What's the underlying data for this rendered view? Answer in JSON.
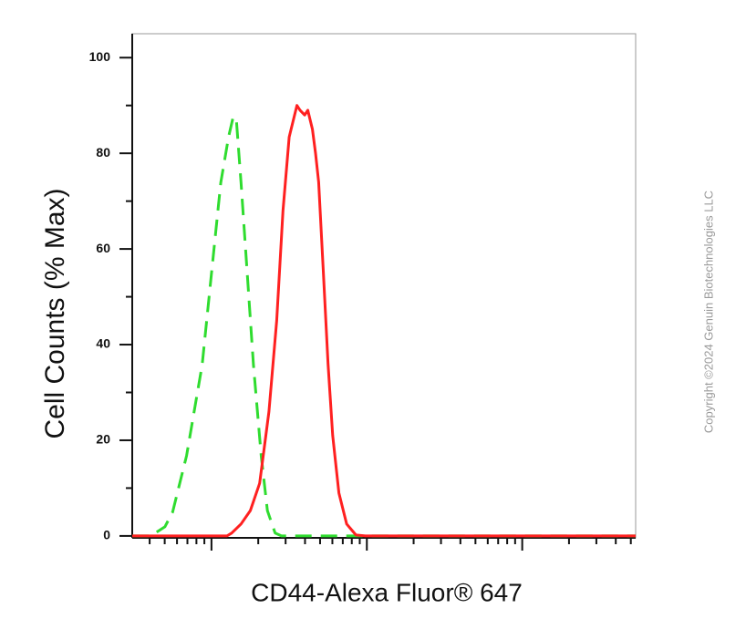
{
  "chart_data": {
    "type": "line",
    "ylabel": "Cell Counts (% Max)",
    "xlabel": "CD44-Alexa Fluor® 647",
    "copyright": "Copyright ©2024 Genuin Biotechnologies LLC",
    "xscale": "log-decades",
    "xlim": [
      -0.51,
      2.73
    ],
    "xticks": [
      0,
      1,
      2
    ],
    "ylim": [
      -0.4,
      105
    ],
    "yticks": [
      0,
      20,
      40,
      60,
      80,
      100
    ],
    "series": [
      {
        "color": "#2fdc2f",
        "linestyle": "dashed",
        "x": [
          -0.51,
          -0.39,
          -0.3,
          -0.25,
          -0.16,
          -0.06,
          0,
          0.06,
          0.11,
          0.14,
          0.16,
          0.19,
          0.23,
          0.27,
          0.32,
          0.36,
          0.41,
          0.45,
          2.73
        ],
        "values": [
          0,
          0,
          1.9,
          5,
          16.8,
          35.8,
          54.9,
          73.9,
          83.4,
          87.6,
          87.2,
          73.9,
          54.9,
          35.8,
          16.8,
          5.3,
          0.6,
          0,
          0
        ]
      },
      {
        "color": "#ff2020",
        "linestyle": "solid",
        "x": [
          -0.51,
          0.1,
          0.13,
          0.19,
          0.25,
          0.31,
          0.37,
          0.42,
          0.46,
          0.5,
          0.55,
          0.57,
          0.6,
          0.62,
          0.65,
          0.67,
          0.69,
          0.72,
          0.75,
          0.78,
          0.82,
          0.87,
          0.93,
          0.99,
          2.73
        ],
        "values": [
          0,
          0,
          0.6,
          2.5,
          5.3,
          11,
          26,
          45,
          68,
          83.4,
          90,
          89,
          88,
          89,
          85,
          80,
          74,
          55,
          36,
          21,
          9,
          2.5,
          0.2,
          0,
          0
        ]
      }
    ]
  }
}
